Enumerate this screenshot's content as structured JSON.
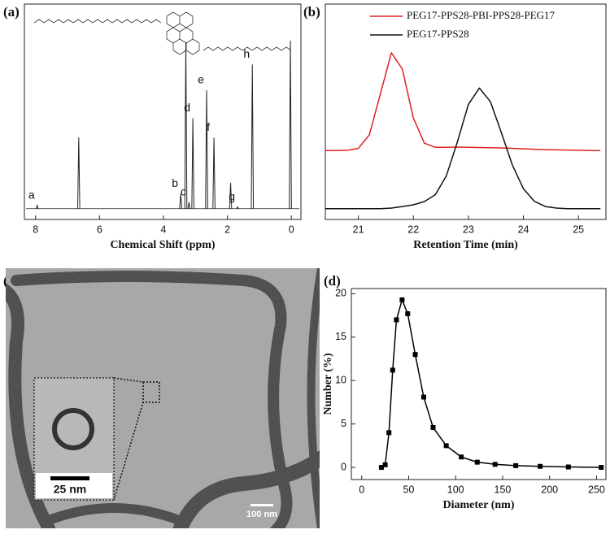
{
  "panel_labels": [
    "(a)",
    "(b)",
    "(c)",
    "(d)"
  ],
  "micrograph": {
    "inset_scale_bar": "25 nm",
    "scale_bar": "100 nm"
  },
  "chart_data": [
    {
      "type": "spectrum",
      "xlabel": "Chemical Shift (ppm)",
      "x": [
        7.95,
        6.65,
        3.46,
        3.3,
        3.2,
        3.08,
        2.65,
        2.42,
        1.9,
        1.68,
        1.22,
        0.03
      ],
      "values": [
        1.5,
        33,
        7,
        77,
        3,
        42,
        55,
        33,
        12,
        0.8,
        67,
        78
      ],
      "labels": [
        "a",
        null,
        "b",
        null,
        "c",
        "d",
        "e",
        "f",
        null,
        "g",
        "h",
        null
      ],
      "color": "#222222",
      "xlim": [
        8.35,
        -0.3
      ],
      "ylim": [
        -5,
        95
      ],
      "xticks": [
        8,
        6,
        4,
        2,
        0
      ]
    },
    {
      "type": "line",
      "xlabel": "Retention Time (min)",
      "x": [
        20.4,
        20.6,
        20.8,
        21.0,
        21.2,
        21.4,
        21.6,
        21.8,
        22.0,
        22.2,
        22.4,
        22.6,
        22.8,
        23.0,
        23.2,
        23.4,
        23.6,
        23.8,
        24.0,
        24.2,
        24.4,
        24.6,
        24.8,
        25.0,
        25.2,
        25.4
      ],
      "series": [
        {
          "name": "PEG17-PPS28-PBI-PPS28-PEG17",
          "color": "#e02020",
          "values": [
            32,
            32,
            32.1,
            33,
            39.3,
            58.2,
            77.4,
            69.8,
            47.1,
            35.4,
            33.5,
            33.5,
            33.6,
            33.5,
            33.4,
            33.3,
            33.2,
            33,
            32.8,
            32.6,
            32.4,
            32.3,
            32.2,
            32.1,
            32,
            32
          ]
        },
        {
          "name": "PEG17-PPS28",
          "color": "#111111",
          "values": [
            5,
            5,
            5,
            5,
            5,
            5,
            5.3,
            6,
            6.8,
            8.3,
            11.5,
            20.3,
            36,
            53.4,
            61,
            54.7,
            40.3,
            25.2,
            14.3,
            8.4,
            6,
            5.3,
            5,
            5,
            5,
            5
          ]
        }
      ],
      "xlim": [
        20.4,
        25.5
      ],
      "ylim": [
        0,
        100
      ],
      "xticks": [
        21,
        22,
        23,
        24,
        25
      ],
      "legend": "upper right"
    },
    {
      "type": "line",
      "xlabel": "Diameter (nm)",
      "ylabel": "Number (%)",
      "x": [
        21,
        25,
        29,
        33,
        37,
        43,
        49,
        57,
        66,
        76,
        90,
        106,
        123,
        142,
        164,
        190,
        220,
        255
      ],
      "values": [
        0,
        0.3,
        4,
        11.2,
        17,
        19.3,
        17.7,
        13,
        8.1,
        4.6,
        2.5,
        1.2,
        0.6,
        0.35,
        0.2,
        0.12,
        0.05,
        0
      ],
      "color": "#000000",
      "marker": "square",
      "xlim": [
        -11,
        260
      ],
      "ylim": [
        -1.4,
        20.6
      ],
      "xticks": [
        0,
        50,
        100,
        150,
        200,
        250
      ],
      "yticks": [
        0,
        5,
        10,
        15,
        20
      ]
    }
  ]
}
